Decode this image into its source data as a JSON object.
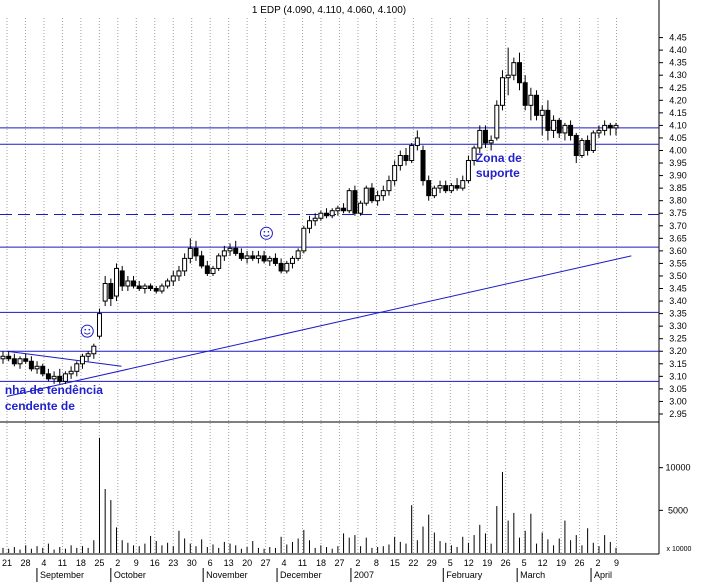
{
  "chart_data": {
    "type": "candlestick",
    "title": "1 EDP (4.090, 4.110, 4.060, 4.100)",
    "price_axis": {
      "ticks": [
        2.95,
        3.0,
        3.05,
        3.1,
        3.15,
        3.2,
        3.25,
        3.3,
        3.35,
        3.4,
        3.45,
        3.5,
        3.55,
        3.6,
        3.65,
        3.7,
        3.75,
        3.8,
        3.85,
        3.9,
        3.95,
        4.0,
        4.05,
        4.1,
        4.15,
        4.2,
        4.25,
        4.3,
        4.35,
        4.4,
        4.45
      ],
      "tick_labels": [
        "2.95",
        "3.00",
        "3.05",
        "3.10",
        "3.15",
        "3.20",
        "3.25",
        "3.30",
        "3.35",
        "3.40",
        "3.45",
        "3.50",
        "3.55",
        "3.60",
        "3.65",
        "3.70",
        "3.75",
        "3.80",
        "3.85",
        "3.90",
        "3.95",
        "4.00",
        "4.05",
        "4.10",
        "4.15",
        "4.20",
        "4.25",
        "4.30",
        "4.35",
        "4.40",
        "4.45"
      ],
      "ylim": [
        2.93,
        4.52
      ]
    },
    "volume_axis": {
      "tick_labels": [
        "10000",
        "5000"
      ],
      "ticks": [
        10000,
        5000
      ],
      "unit_label": "x 10000",
      "ylim": [
        0,
        15000
      ]
    },
    "date_axis": {
      "day_labels": [
        "21",
        "28",
        "4",
        "11",
        "18",
        "25",
        "2",
        "9",
        "16",
        "23",
        "30",
        "6",
        "13",
        "20",
        "27",
        "4",
        "11",
        "18",
        "27",
        "2",
        "8",
        "15",
        "22",
        "29",
        "5",
        "12",
        "19",
        "26",
        "5",
        "12",
        "19",
        "26",
        "2",
        "9"
      ],
      "month_labels": [
        {
          "label": "September",
          "at_day_index": 2
        },
        {
          "label": "October",
          "at_day_index": 6
        },
        {
          "label": "November",
          "at_day_index": 11
        },
        {
          "label": "December",
          "at_day_index": 15
        },
        {
          "label": "2007",
          "at_day_index": 19
        },
        {
          "label": "February",
          "at_day_index": 24
        },
        {
          "label": "March",
          "at_day_index": 28
        },
        {
          "label": "April",
          "at_day_index": 32
        }
      ]
    },
    "horizontal_lines": [
      {
        "value": 4.09,
        "style": "solid"
      },
      {
        "value": 4.025,
        "style": "solid"
      },
      {
        "value": 3.745,
        "style": "dashed"
      },
      {
        "value": 3.615,
        "style": "solid"
      },
      {
        "value": 3.355,
        "style": "solid"
      },
      {
        "value": 3.2,
        "style": "solid"
      },
      {
        "value": 3.08,
        "style": "solid"
      }
    ],
    "trend_lines": [
      {
        "from_day": 0,
        "from_value": 3.02,
        "to_day": 33.8,
        "to_value": 3.58
      },
      {
        "from_day": 0,
        "from_value": 3.2,
        "to_day": 6.2,
        "to_value": 3.14
      }
    ],
    "annotations": [
      {
        "text": "Zona de",
        "day": 25.6,
        "value": 3.955
      },
      {
        "text": "suporte",
        "day": 25.6,
        "value": 3.895
      },
      {
        "text": "nha de tendência",
        "day": 0.1,
        "value": 3.03
      },
      {
        "text": "cendente de",
        "day": 0.1,
        "value": 2.965
      }
    ],
    "smileys": [
      {
        "day": 4.4,
        "value": 3.28
      },
      {
        "day": 14.1,
        "value": 3.67
      }
    ],
    "candles": [
      {
        "o": 3.17,
        "h": 3.2,
        "l": 3.15,
        "c": 3.18
      },
      {
        "o": 3.18,
        "h": 3.2,
        "l": 3.16,
        "c": 3.17
      },
      {
        "o": 3.17,
        "h": 3.19,
        "l": 3.14,
        "c": 3.15
      },
      {
        "o": 3.15,
        "h": 3.18,
        "l": 3.13,
        "c": 3.17
      },
      {
        "o": 3.17,
        "h": 3.19,
        "l": 3.15,
        "c": 3.16
      },
      {
        "o": 3.16,
        "h": 3.18,
        "l": 3.12,
        "c": 3.13
      },
      {
        "o": 3.13,
        "h": 3.16,
        "l": 3.11,
        "c": 3.14
      },
      {
        "o": 3.14,
        "h": 3.15,
        "l": 3.1,
        "c": 3.11
      },
      {
        "o": 3.11,
        "h": 3.13,
        "l": 3.08,
        "c": 3.09
      },
      {
        "o": 3.09,
        "h": 3.12,
        "l": 3.07,
        "c": 3.1
      },
      {
        "o": 3.1,
        "h": 3.13,
        "l": 3.07,
        "c": 3.08
      },
      {
        "o": 3.08,
        "h": 3.12,
        "l": 3.07,
        "c": 3.11
      },
      {
        "o": 3.11,
        "h": 3.14,
        "l": 3.09,
        "c": 3.12
      },
      {
        "o": 3.12,
        "h": 3.16,
        "l": 3.1,
        "c": 3.15
      },
      {
        "o": 3.15,
        "h": 3.19,
        "l": 3.13,
        "c": 3.18
      },
      {
        "o": 3.18,
        "h": 3.2,
        "l": 3.16,
        "c": 3.19
      },
      {
        "o": 3.19,
        "h": 3.23,
        "l": 3.17,
        "c": 3.22
      },
      {
        "o": 3.26,
        "h": 3.37,
        "l": 3.25,
        "c": 3.35
      },
      {
        "o": 3.4,
        "h": 3.5,
        "l": 3.38,
        "c": 3.47
      },
      {
        "o": 3.47,
        "h": 3.49,
        "l": 3.38,
        "c": 3.41
      },
      {
        "o": 3.42,
        "h": 3.55,
        "l": 3.4,
        "c": 3.53
      },
      {
        "o": 3.52,
        "h": 3.54,
        "l": 3.44,
        "c": 3.46
      },
      {
        "o": 3.46,
        "h": 3.5,
        "l": 3.44,
        "c": 3.48
      },
      {
        "o": 3.48,
        "h": 3.5,
        "l": 3.45,
        "c": 3.46
      },
      {
        "o": 3.46,
        "h": 3.48,
        "l": 3.44,
        "c": 3.45
      },
      {
        "o": 3.45,
        "h": 3.47,
        "l": 3.43,
        "c": 3.46
      },
      {
        "o": 3.46,
        "h": 3.47,
        "l": 3.44,
        "c": 3.45
      },
      {
        "o": 3.45,
        "h": 3.46,
        "l": 3.43,
        "c": 3.44
      },
      {
        "o": 3.44,
        "h": 3.47,
        "l": 3.43,
        "c": 3.46
      },
      {
        "o": 3.46,
        "h": 3.49,
        "l": 3.45,
        "c": 3.48
      },
      {
        "o": 3.48,
        "h": 3.52,
        "l": 3.46,
        "c": 3.5
      },
      {
        "o": 3.5,
        "h": 3.54,
        "l": 3.48,
        "c": 3.52
      },
      {
        "o": 3.52,
        "h": 3.59,
        "l": 3.5,
        "c": 3.57
      },
      {
        "o": 3.57,
        "h": 3.65,
        "l": 3.55,
        "c": 3.61
      },
      {
        "o": 3.61,
        "h": 3.64,
        "l": 3.56,
        "c": 3.58
      },
      {
        "o": 3.58,
        "h": 3.6,
        "l": 3.53,
        "c": 3.54
      },
      {
        "o": 3.54,
        "h": 3.56,
        "l": 3.5,
        "c": 3.51
      },
      {
        "o": 3.51,
        "h": 3.54,
        "l": 3.5,
        "c": 3.53
      },
      {
        "o": 3.53,
        "h": 3.59,
        "l": 3.52,
        "c": 3.58
      },
      {
        "o": 3.58,
        "h": 3.62,
        "l": 3.56,
        "c": 3.6
      },
      {
        "o": 3.6,
        "h": 3.63,
        "l": 3.58,
        "c": 3.61
      },
      {
        "o": 3.61,
        "h": 3.64,
        "l": 3.58,
        "c": 3.59
      },
      {
        "o": 3.59,
        "h": 3.61,
        "l": 3.56,
        "c": 3.57
      },
      {
        "o": 3.57,
        "h": 3.6,
        "l": 3.55,
        "c": 3.58
      },
      {
        "o": 3.58,
        "h": 3.6,
        "l": 3.56,
        "c": 3.57
      },
      {
        "o": 3.57,
        "h": 3.6,
        "l": 3.55,
        "c": 3.58
      },
      {
        "o": 3.58,
        "h": 3.6,
        "l": 3.55,
        "c": 3.56
      },
      {
        "o": 3.56,
        "h": 3.58,
        "l": 3.54,
        "c": 3.57
      },
      {
        "o": 3.57,
        "h": 3.59,
        "l": 3.54,
        "c": 3.55
      },
      {
        "o": 3.55,
        "h": 3.57,
        "l": 3.51,
        "c": 3.52
      },
      {
        "o": 3.52,
        "h": 3.56,
        "l": 3.51,
        "c": 3.55
      },
      {
        "o": 3.55,
        "h": 3.58,
        "l": 3.53,
        "c": 3.57
      },
      {
        "o": 3.57,
        "h": 3.61,
        "l": 3.56,
        "c": 3.6
      },
      {
        "o": 3.6,
        "h": 3.7,
        "l": 3.59,
        "c": 3.69
      },
      {
        "o": 3.69,
        "h": 3.74,
        "l": 3.67,
        "c": 3.72
      },
      {
        "o": 3.72,
        "h": 3.75,
        "l": 3.7,
        "c": 3.73
      },
      {
        "o": 3.73,
        "h": 3.76,
        "l": 3.72,
        "c": 3.75
      },
      {
        "o": 3.75,
        "h": 3.77,
        "l": 3.73,
        "c": 3.74
      },
      {
        "o": 3.74,
        "h": 3.77,
        "l": 3.73,
        "c": 3.76
      },
      {
        "o": 3.76,
        "h": 3.78,
        "l": 3.74,
        "c": 3.77
      },
      {
        "o": 3.77,
        "h": 3.79,
        "l": 3.75,
        "c": 3.76
      },
      {
        "o": 3.76,
        "h": 3.85,
        "l": 3.75,
        "c": 3.84
      },
      {
        "o": 3.84,
        "h": 3.86,
        "l": 3.74,
        "c": 3.75
      },
      {
        "o": 3.75,
        "h": 3.8,
        "l": 3.74,
        "c": 3.79
      },
      {
        "o": 3.79,
        "h": 3.86,
        "l": 3.78,
        "c": 3.85
      },
      {
        "o": 3.85,
        "h": 3.87,
        "l": 3.79,
        "c": 3.8
      },
      {
        "o": 3.8,
        "h": 3.84,
        "l": 3.78,
        "c": 3.82
      },
      {
        "o": 3.82,
        "h": 3.86,
        "l": 3.8,
        "c": 3.84
      },
      {
        "o": 3.84,
        "h": 3.9,
        "l": 3.82,
        "c": 3.88
      },
      {
        "o": 3.88,
        "h": 3.96,
        "l": 3.86,
        "c": 3.94
      },
      {
        "o": 3.94,
        "h": 4.0,
        "l": 3.92,
        "c": 3.98
      },
      {
        "o": 3.98,
        "h": 4.01,
        "l": 3.94,
        "c": 3.96
      },
      {
        "o": 3.96,
        "h": 4.03,
        "l": 3.95,
        "c": 4.02
      },
      {
        "o": 4.02,
        "h": 4.08,
        "l": 4.0,
        "c": 4.05
      },
      {
        "o": 4.0,
        "h": 4.02,
        "l": 3.86,
        "c": 3.88
      },
      {
        "o": 3.88,
        "h": 3.9,
        "l": 3.8,
        "c": 3.82
      },
      {
        "o": 3.82,
        "h": 3.86,
        "l": 3.81,
        "c": 3.85
      },
      {
        "o": 3.85,
        "h": 3.88,
        "l": 3.83,
        "c": 3.86
      },
      {
        "o": 3.86,
        "h": 3.88,
        "l": 3.83,
        "c": 3.84
      },
      {
        "o": 3.84,
        "h": 3.87,
        "l": 3.83,
        "c": 3.86
      },
      {
        "o": 3.86,
        "h": 3.89,
        "l": 3.84,
        "c": 3.85
      },
      {
        "o": 3.85,
        "h": 3.9,
        "l": 3.84,
        "c": 3.88
      },
      {
        "o": 3.88,
        "h": 3.98,
        "l": 3.87,
        "c": 3.96
      },
      {
        "o": 3.96,
        "h": 4.02,
        "l": 3.94,
        "c": 4.01
      },
      {
        "o": 4.01,
        "h": 4.1,
        "l": 3.99,
        "c": 4.08
      },
      {
        "o": 4.08,
        "h": 4.1,
        "l": 4.01,
        "c": 4.03
      },
      {
        "o": 4.03,
        "h": 4.06,
        "l": 4.0,
        "c": 4.04
      },
      {
        "o": 4.05,
        "h": 4.2,
        "l": 4.04,
        "c": 4.18
      },
      {
        "o": 4.18,
        "h": 4.32,
        "l": 4.16,
        "c": 4.29
      },
      {
        "o": 4.29,
        "h": 4.41,
        "l": 4.22,
        "c": 4.3
      },
      {
        "o": 4.3,
        "h": 4.37,
        "l": 4.28,
        "c": 4.35
      },
      {
        "o": 4.35,
        "h": 4.39,
        "l": 4.24,
        "c": 4.27
      },
      {
        "o": 4.27,
        "h": 4.3,
        "l": 4.16,
        "c": 4.18
      },
      {
        "o": 4.18,
        "h": 4.25,
        "l": 4.12,
        "c": 4.22
      },
      {
        "o": 4.22,
        "h": 4.24,
        "l": 4.12,
        "c": 4.14
      },
      {
        "o": 4.14,
        "h": 4.18,
        "l": 4.06,
        "c": 4.16
      },
      {
        "o": 4.16,
        "h": 4.2,
        "l": 4.04,
        "c": 4.08
      },
      {
        "o": 4.08,
        "h": 4.14,
        "l": 4.05,
        "c": 4.12
      },
      {
        "o": 4.12,
        "h": 4.13,
        "l": 4.05,
        "c": 4.07
      },
      {
        "o": 4.07,
        "h": 4.11,
        "l": 4.04,
        "c": 4.1
      },
      {
        "o": 4.1,
        "h": 4.12,
        "l": 4.04,
        "c": 4.06
      },
      {
        "o": 4.06,
        "h": 4.07,
        "l": 3.95,
        "c": 3.98
      },
      {
        "o": 3.98,
        "h": 4.05,
        "l": 3.97,
        "c": 4.04
      },
      {
        "o": 4.04,
        "h": 4.06,
        "l": 3.98,
        "c": 4.0
      },
      {
        "o": 4.0,
        "h": 4.08,
        "l": 3.99,
        "c": 4.07
      },
      {
        "o": 4.07,
        "h": 4.1,
        "l": 4.05,
        "c": 4.08
      },
      {
        "o": 4.08,
        "h": 4.12,
        "l": 4.06,
        "c": 4.1
      },
      {
        "o": 4.1,
        "h": 4.11,
        "l": 4.06,
        "c": 4.09
      },
      {
        "o": 4.09,
        "h": 4.11,
        "l": 4.06,
        "c": 4.1
      }
    ],
    "volumes": [
      600,
      500,
      700,
      400,
      900,
      500,
      800,
      600,
      1100,
      400,
      700,
      500,
      900,
      600,
      800,
      600,
      1500,
      13500,
      7500,
      6200,
      3000,
      1500,
      1200,
      900,
      800,
      1100,
      2000,
      1400,
      900,
      1200,
      800,
      2600,
      1700,
      1100,
      800,
      1600,
      700,
      1000,
      600,
      1300,
      1100,
      900,
      500,
      700,
      1400,
      600,
      500,
      700,
      600,
      1900,
      1000,
      1300,
      1700,
      2700,
      1500,
      600,
      900,
      700,
      500,
      800,
      2300,
      1800,
      2100,
      800,
      1800,
      600,
      700,
      800,
      1000,
      1900,
      1300,
      1100,
      5600,
      1500,
      3100,
      4500,
      2400,
      1400,
      1200,
      900,
      700,
      1900,
      1200,
      2100,
      3300,
      2300,
      1100,
      5500,
      9500,
      3800,
      4700,
      1800,
      2600,
      4600,
      1100,
      2400,
      1600,
      900,
      1700,
      3800,
      1500,
      2100,
      900,
      2900,
      1200,
      800,
      2100,
      1300,
      600
    ]
  }
}
